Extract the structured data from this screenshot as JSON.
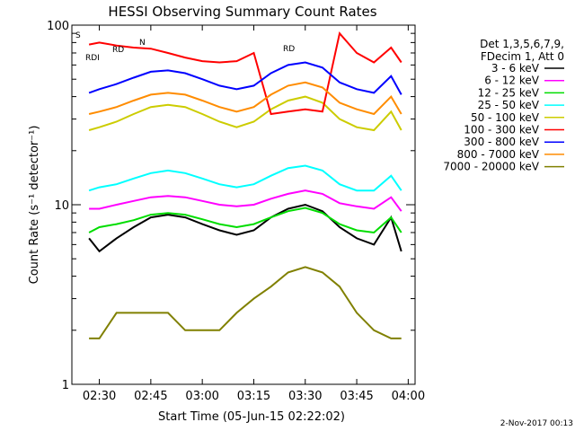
{
  "chart_data": {
    "type": "line",
    "title": "HESSI Observing Summary Count Rates",
    "xlabel": "Start Time (05-Jun-15 02:22:02)",
    "ylabel": "Count Rate (s⁻¹ detector⁻¹)",
    "yscale": "log",
    "ylim": [
      1,
      100
    ],
    "xlim": [
      "02:22",
      "04:02"
    ],
    "x_ticks": [
      "02:30",
      "02:45",
      "03:00",
      "03:15",
      "03:30",
      "03:45",
      "04:00"
    ],
    "y_ticks": [
      "1",
      "10",
      "100"
    ],
    "legend_title": [
      "Det 1,3,5,6,7,9,",
      "FDecim 1, Att 0"
    ],
    "legend_position": "top-right, outside plot",
    "date_stamp": "2-Nov-2017 00:13",
    "x": [
      "02:27",
      "02:30",
      "02:35",
      "02:40",
      "02:45",
      "02:50",
      "02:55",
      "03:00",
      "03:05",
      "03:10",
      "03:15",
      "03:20",
      "03:25",
      "03:30",
      "03:35",
      "03:40",
      "03:45",
      "03:50",
      "03:55",
      "03:58"
    ],
    "series": [
      {
        "name": "3 - 6 keV",
        "color": "#000000",
        "values": [
          6.5,
          5.5,
          6.5,
          7.5,
          8.5,
          8.8,
          8.5,
          7.8,
          7.2,
          6.8,
          7.2,
          8.5,
          9.5,
          10,
          9.2,
          7.5,
          6.5,
          6.0,
          8.5,
          5.5
        ]
      },
      {
        "name": "6 - 12 keV",
        "color": "#ff00ff",
        "values": [
          9.5,
          9.5,
          10,
          10.5,
          11,
          11.2,
          11,
          10.5,
          10,
          9.8,
          10,
          10.8,
          11.5,
          12,
          11.5,
          10.2,
          9.8,
          9.5,
          11,
          9.2
        ]
      },
      {
        "name": "12 - 25 keV",
        "color": "#00dd00",
        "values": [
          7,
          7.5,
          7.8,
          8.2,
          8.8,
          9,
          8.8,
          8.3,
          7.8,
          7.5,
          7.8,
          8.5,
          9.2,
          9.6,
          9,
          7.8,
          7.2,
          7,
          8.5,
          7
        ]
      },
      {
        "name": "25 - 50 keV",
        "color": "#00ffff",
        "values": [
          12,
          12.5,
          13,
          14,
          15,
          15.5,
          15,
          14,
          13,
          12.5,
          13,
          14.5,
          16,
          16.5,
          15.5,
          13,
          12,
          12,
          14.5,
          12
        ]
      },
      {
        "name": "50 - 100 keV",
        "color": "#cccc00",
        "values": [
          26,
          27,
          29,
          32,
          35,
          36,
          35,
          32,
          29,
          27,
          29,
          34,
          38,
          40,
          37,
          30,
          27,
          26,
          33,
          26
        ]
      },
      {
        "name": "100 - 300 keV",
        "color": "#ff0000",
        "values": [
          78,
          80,
          77,
          75,
          74,
          70,
          66,
          63,
          62,
          63,
          70,
          32,
          33,
          34,
          33,
          90,
          70,
          62,
          75,
          62
        ]
      },
      {
        "name": "300 - 800 keV",
        "color": "#0000ff",
        "values": [
          42,
          44,
          47,
          51,
          55,
          56,
          54,
          50,
          46,
          44,
          46,
          54,
          60,
          62,
          58,
          48,
          44,
          42,
          52,
          41
        ]
      },
      {
        "name": "800 - 7000 keV",
        "color": "#ff8c00",
        "values": [
          32,
          33,
          35,
          38,
          41,
          42,
          41,
          38,
          35,
          33,
          35,
          41,
          46,
          48,
          45,
          37,
          34,
          32,
          40,
          32
        ]
      },
      {
        "name": "7000 - 20000 keV",
        "color": "#808000",
        "values": [
          1.8,
          1.8,
          2.5,
          2.5,
          2.5,
          2.5,
          2.0,
          2.0,
          2.0,
          2.5,
          3.0,
          3.5,
          4.2,
          4.5,
          4.2,
          3.5,
          2.5,
          2.0,
          1.8,
          1.8
        ]
      }
    ],
    "flags": [
      {
        "label": "S",
        "color": "#ff8c00"
      },
      {
        "label": "N",
        "color": "#00ffff"
      },
      {
        "label": "RD",
        "color": "#000000"
      },
      {
        "label": "RDI",
        "color": "#000000"
      },
      {
        "label": "RD",
        "color": "#000000"
      }
    ]
  }
}
